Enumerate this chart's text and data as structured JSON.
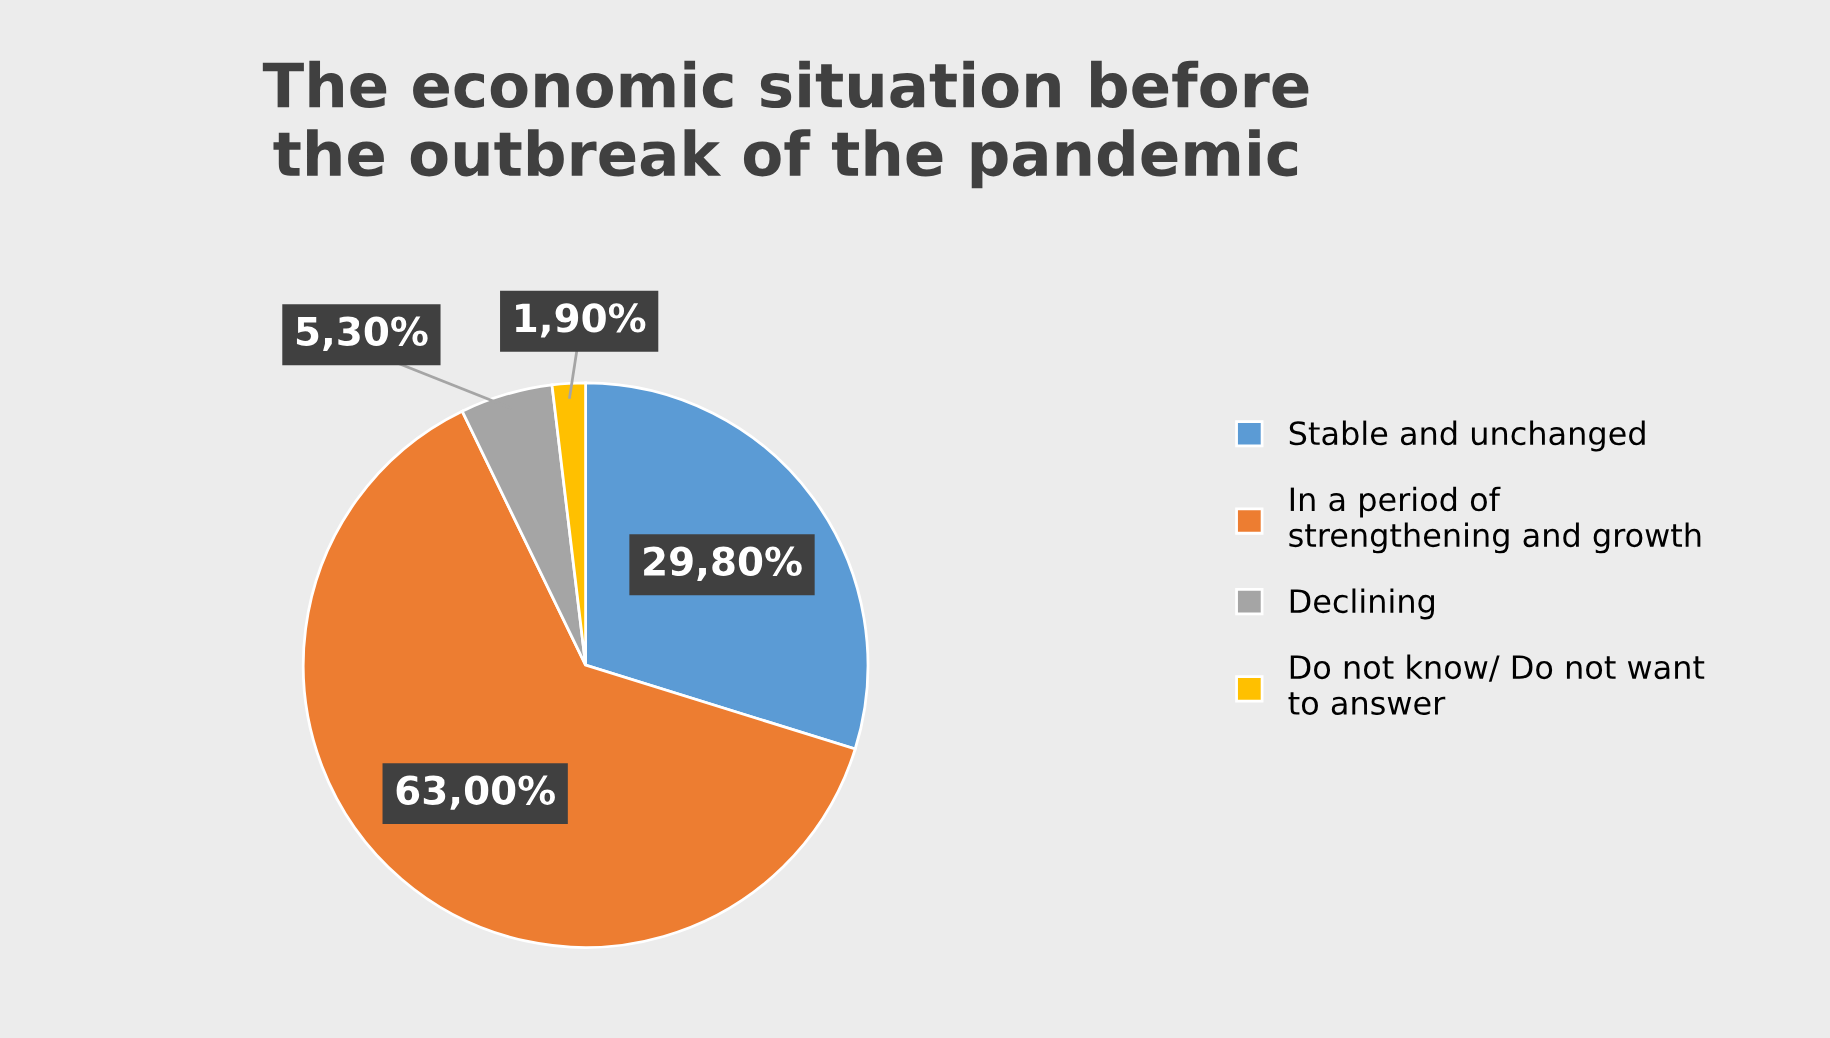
{
  "chart_data": {
    "type": "pie",
    "title": "The economic situation before\nthe outbreak of the pandemic",
    "categories": [
      "Stable and unchanged",
      "In a period of strengthening and growth",
      "Declining",
      "Do not know/ Do not want to answer"
    ],
    "values": [
      29.8,
      63.0,
      5.3,
      1.9
    ],
    "value_labels": [
      "29,80%",
      "63,00%",
      "5,30%",
      "1,90%"
    ],
    "colors": [
      "#5b9bd5",
      "#ed7d31",
      "#a5a5a5",
      "#ffc000"
    ],
    "legend": "right"
  }
}
